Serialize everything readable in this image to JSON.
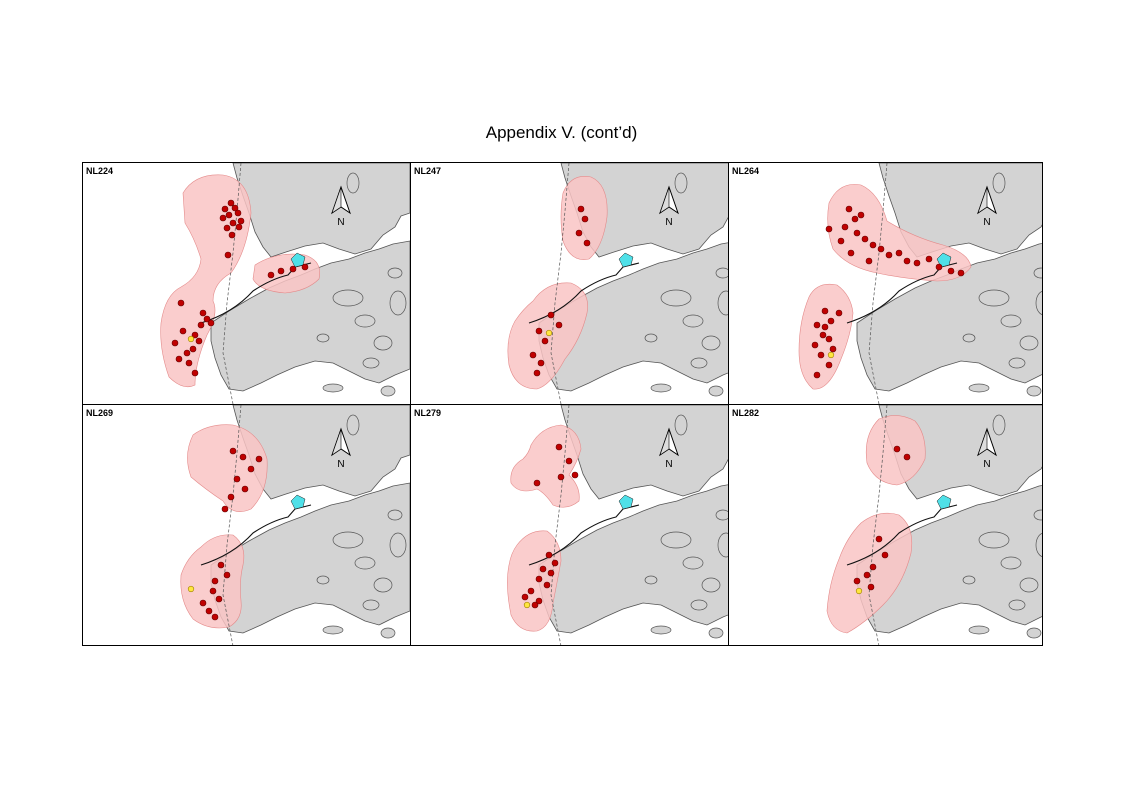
{
  "title": "Appendix V.  (cont’d)",
  "north_label": "N",
  "colors": {
    "land": "#d3d3d3",
    "home_range": "#f9c4c4",
    "location_point": "#c00000",
    "yellow_point": "#ffe640",
    "facility": "#4fe0e8"
  },
  "panels": [
    {
      "id": "NL224"
    },
    {
      "id": "NL247"
    },
    {
      "id": "NL264"
    },
    {
      "id": "NL269"
    },
    {
      "id": "NL279"
    },
    {
      "id": "NL282"
    }
  ]
}
